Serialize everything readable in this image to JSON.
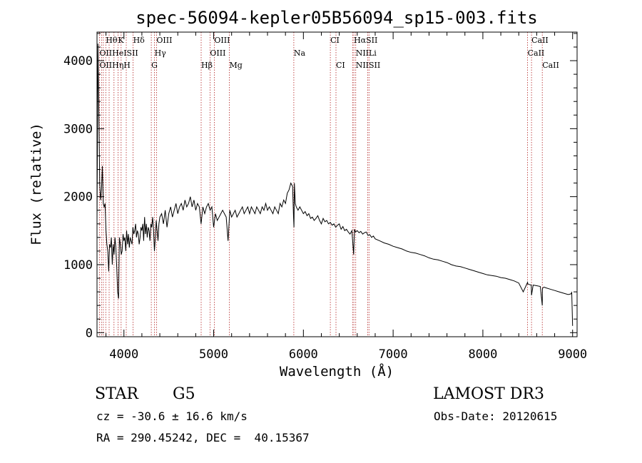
{
  "chart_data": {
    "type": "line",
    "title": "spec-56094-kepler05B56094_sp15-003.fits",
    "xlabel": "Wavelength (Å)",
    "ylabel": "Flux (relative)",
    "xlim": [
      3700,
      9050
    ],
    "ylim": [
      -60,
      4420
    ],
    "xticks": [
      4000,
      5000,
      6000,
      7000,
      8000,
      9000
    ],
    "yticks": [
      0,
      1000,
      2000,
      3000,
      4000
    ],
    "grid": false,
    "series": [
      {
        "name": "flux",
        "color": "#000000",
        "x": [
          3700,
          3710,
          3720,
          3730,
          3740,
          3750,
          3760,
          3770,
          3780,
          3790,
          3800,
          3810,
          3820,
          3830,
          3840,
          3850,
          3860,
          3870,
          3880,
          3890,
          3900,
          3910,
          3920,
          3930,
          3940,
          3950,
          3960,
          3970,
          3980,
          3990,
          4000,
          4010,
          4020,
          4030,
          4040,
          4050,
          4060,
          4070,
          4080,
          4090,
          4100,
          4110,
          4120,
          4130,
          4140,
          4150,
          4160,
          4170,
          4180,
          4190,
          4200,
          4210,
          4220,
          4230,
          4240,
          4250,
          4260,
          4270,
          4280,
          4290,
          4300,
          4310,
          4320,
          4330,
          4340,
          4350,
          4360,
          4370,
          4380,
          4390,
          4400,
          4420,
          4440,
          4460,
          4480,
          4500,
          4520,
          4540,
          4560,
          4580,
          4600,
          4620,
          4640,
          4660,
          4680,
          4700,
          4720,
          4740,
          4760,
          4780,
          4800,
          4820,
          4840,
          4860,
          4880,
          4900,
          4920,
          4940,
          4960,
          4980,
          5000,
          5020,
          5040,
          5060,
          5080,
          5100,
          5120,
          5140,
          5160,
          5180,
          5200,
          5220,
          5240,
          5260,
          5280,
          5300,
          5320,
          5340,
          5360,
          5380,
          5400,
          5420,
          5440,
          5460,
          5480,
          5500,
          5520,
          5540,
          5560,
          5580,
          5600,
          5620,
          5640,
          5660,
          5680,
          5700,
          5720,
          5740,
          5760,
          5780,
          5800,
          5820,
          5840,
          5860,
          5880,
          5890,
          5895,
          5900,
          5910,
          5920,
          5940,
          5960,
          5980,
          6000,
          6020,
          6040,
          6060,
          6080,
          6100,
          6120,
          6140,
          6160,
          6180,
          6200,
          6220,
          6240,
          6260,
          6280,
          6300,
          6320,
          6340,
          6360,
          6380,
          6400,
          6420,
          6440,
          6460,
          6480,
          6500,
          6520,
          6540,
          6560,
          6565,
          6570,
          6580,
          6600,
          6620,
          6640,
          6660,
          6680,
          6700,
          6720,
          6740,
          6760,
          6780,
          6800,
          6850,
          6900,
          6950,
          7000,
          7050,
          7100,
          7150,
          7200,
          7250,
          7300,
          7350,
          7400,
          7450,
          7500,
          7550,
          7600,
          7650,
          7700,
          7750,
          7800,
          7850,
          7900,
          7950,
          8000,
          8050,
          8100,
          8150,
          8200,
          8250,
          8300,
          8350,
          8400,
          8450,
          8498,
          8500,
          8510,
          8540,
          8542,
          8560,
          8600,
          8640,
          8662,
          8664,
          8680,
          8700,
          8750,
          8800,
          8850,
          8900,
          8950,
          8980,
          8990,
          9000
        ],
        "y": [
          1650,
          4250,
          3300,
          2200,
          1950,
          2100,
          2450,
          1900,
          1850,
          1900,
          1500,
          1300,
          1200,
          900,
          1300,
          1250,
          1400,
          1000,
          1300,
          1150,
          1400,
          1250,
          950,
          600,
          500,
          1400,
          1300,
          1150,
          1200,
          1450,
          1350,
          1400,
          1200,
          1500,
          1300,
          1450,
          1250,
          1400,
          1350,
          1300,
          1550,
          1450,
          1500,
          1600,
          1400,
          1500,
          1450,
          1300,
          1400,
          1550,
          1500,
          1600,
          1350,
          1700,
          1450,
          1600,
          1400,
          1550,
          1500,
          1350,
          1600,
          1550,
          1700,
          1500,
          1200,
          1400,
          1650,
          1500,
          1350,
          1600,
          1700,
          1750,
          1600,
          1800,
          1550,
          1750,
          1850,
          1700,
          1800,
          1900,
          1750,
          1850,
          1900,
          1800,
          1950,
          1850,
          1900,
          2000,
          1850,
          1950,
          1800,
          1900,
          1850,
          1600,
          1850,
          1750,
          1850,
          1900,
          1800,
          1850,
          1550,
          1750,
          1650,
          1700,
          1750,
          1800,
          1750,
          1700,
          1350,
          1800,
          1700,
          1750,
          1800,
          1700,
          1750,
          1800,
          1850,
          1750,
          1800,
          1850,
          1750,
          1850,
          1800,
          1750,
          1850,
          1800,
          1750,
          1850,
          1800,
          1900,
          1800,
          1850,
          1800,
          1750,
          1850,
          1800,
          1750,
          1900,
          1850,
          1950,
          1900,
          2050,
          2100,
          2200,
          2150,
          1700,
          1550,
          2200,
          1900,
          1850,
          1800,
          1850,
          1800,
          1750,
          1780,
          1720,
          1750,
          1680,
          1700,
          1650,
          1680,
          1720,
          1650,
          1600,
          1680,
          1630,
          1650,
          1600,
          1620,
          1580,
          1600,
          1550,
          1580,
          1600,
          1520,
          1560,
          1500,
          1520,
          1480,
          1450,
          1500,
          1150,
          1350,
          1520,
          1480,
          1500,
          1470,
          1490,
          1450,
          1470,
          1480,
          1430,
          1440,
          1400,
          1420,
          1380,
          1350,
          1320,
          1300,
          1270,
          1250,
          1230,
          1200,
          1180,
          1170,
          1150,
          1130,
          1100,
          1080,
          1070,
          1050,
          1030,
          1000,
          980,
          970,
          950,
          930,
          910,
          890,
          870,
          850,
          840,
          830,
          810,
          800,
          780,
          760,
          730,
          600,
          740,
          720,
          710,
          700,
          550,
          700,
          690,
          680,
          400,
          650,
          670,
          660,
          640,
          620,
          600,
          580,
          560,
          570,
          590,
          100
        ]
      }
    ],
    "lines_row1": [
      {
        "label": "Hθ",
        "x": 3798
      },
      {
        "label": "K",
        "x": 3934
      },
      {
        "label": "Hδ",
        "x": 4102
      },
      {
        "label": "OIII",
        "x": 4363
      },
      {
        "label": "OIII",
        "x": 5007
      },
      {
        "label": "CI",
        "x": 6300
      },
      {
        "label": "HαSII",
        "x": 6563
      },
      {
        "label": "CaII",
        "x": 8542
      }
    ],
    "lines_row2": [
      {
        "label": "OIIHeISII",
        "x": 3727
      },
      {
        "label": "Hγ",
        "x": 4341
      },
      {
        "label": "OIII",
        "x": 4959
      },
      {
        "label": "Na",
        "x": 5893
      },
      {
        "label": "NIILi",
        "x": 6583
      },
      {
        "label": "CaII",
        "x": 8498
      }
    ],
    "lines_row3": [
      {
        "label": "OIIHηH",
        "x": 3727
      },
      {
        "label": "G",
        "x": 4305
      },
      {
        "label": "Hβ",
        "x": 4861
      },
      {
        "label": "Mg",
        "x": 5175
      },
      {
        "label": "CI",
        "x": 6363
      },
      {
        "label": "NIISII",
        "x": 6583
      },
      {
        "label": "CaII",
        "x": 8662
      }
    ],
    "marker_x": [
      3727,
      3750,
      3771,
      3798,
      3835,
      3889,
      3934,
      3969,
      4026,
      4102,
      4305,
      4341,
      4363,
      4861,
      4959,
      5007,
      5175,
      5893,
      6300,
      6363,
      6548,
      6563,
      6583,
      6717,
      6731,
      8498,
      8542,
      8662
    ]
  },
  "info": {
    "object_type": "STAR",
    "subclass": "G5",
    "survey": "LAMOST DR3",
    "cz": "cz = -30.6 ± 16.6 km/s",
    "obs_date": "Obs-Date: 20120615",
    "coords": "RA = 290.45242, DEC =  40.15367"
  }
}
